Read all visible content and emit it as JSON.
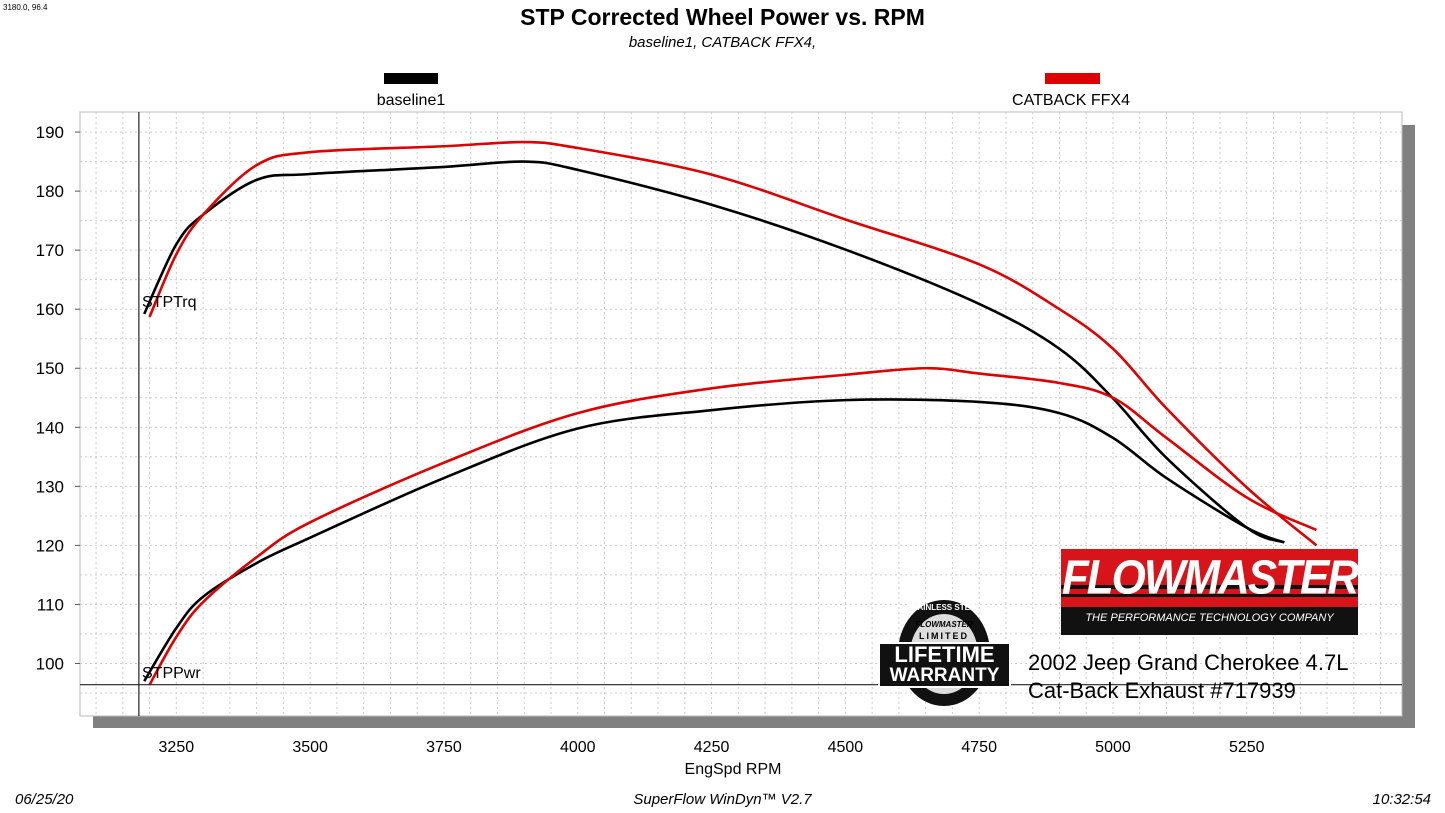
{
  "cursor_readout": "3180.0, 96.4",
  "footer": {
    "date": "06/25/20",
    "software": "SuperFlow WinDyn™ V2.7",
    "time": "10:32:54"
  },
  "annotation": {
    "line1": "2002 Jeep Grand Cherokee 4.7L",
    "line2": "Cat-Back Exhaust #717939"
  },
  "logos": {
    "flowmaster": {
      "name": "FLOWMASTER",
      "tagline": "THE PERFORMANCE TECHNOLOGY COMPANY",
      "mark": "INC."
    },
    "warranty": {
      "ring": "STAINLESS STEEL",
      "brand": "FLOWMASTER",
      "l1": "LIMITED",
      "l2": "LIFETIME",
      "l3": "WARRANTY"
    }
  },
  "colors": {
    "baseline1": "#000000",
    "catback": "#dd0000",
    "shadow": "#808080",
    "logo_red": "#d7141a"
  },
  "chart_data": {
    "type": "line",
    "title": "STP Corrected Wheel Power vs. RPM",
    "subtitle": "baseline1, CATBACK FFX4,",
    "xlabel": "EngSpd  RPM",
    "ylabel": "",
    "xlim": [
      3070,
      5540
    ],
    "ylim": [
      91.1,
      193.4
    ],
    "xticks": [
      3250,
      3500,
      3750,
      4000,
      4250,
      4500,
      4750,
      5000,
      5250
    ],
    "yticks": [
      100,
      110,
      120,
      130,
      140,
      150,
      160,
      170,
      180,
      190
    ],
    "grid": true,
    "legend_placement": "top",
    "cursor": {
      "x": 3180.0,
      "y": 96.4
    },
    "curve_labels": {
      "torque": "STPTrq",
      "power": "STPPwr"
    },
    "series": [
      {
        "name": "baseline1",
        "quantity": "STPTrq",
        "color": "#000000",
        "x": [
          3190,
          3250,
          3300,
          3400,
          3500,
          3750,
          3900,
          4000,
          4250,
          4500,
          4750,
          4900,
          5000,
          5100,
          5250,
          5320
        ],
        "y": [
          159.2,
          171,
          176,
          181.9,
          182.9,
          184.1,
          185,
          183.6,
          177.7,
          170.1,
          160.9,
          153.3,
          144.9,
          134.8,
          123,
          120.5
        ]
      },
      {
        "name": "CATBACK FFX4",
        "quantity": "STPTrq",
        "color": "#dd0000",
        "x": [
          3200,
          3250,
          3300,
          3400,
          3500,
          3750,
          3900,
          4000,
          4250,
          4500,
          4750,
          4900,
          5000,
          5100,
          5250,
          5380
        ],
        "y": [
          158.7,
          169.3,
          176,
          184.4,
          186.6,
          187.6,
          188.3,
          187.3,
          182.8,
          175.2,
          167.6,
          160,
          153.3,
          143.2,
          129.8,
          120
        ]
      },
      {
        "name": "baseline1",
        "quantity": "STPPwr",
        "color": "#000000",
        "x": [
          3190,
          3250,
          3300,
          3400,
          3500,
          3750,
          4000,
          4250,
          4500,
          4750,
          4900,
          5000,
          5100,
          5250,
          5320
        ],
        "y": [
          97,
          106,
          111.3,
          117,
          121.3,
          131.4,
          139.8,
          142.9,
          144.6,
          144.3,
          142.4,
          138.2,
          131.4,
          123,
          120.5
        ]
      },
      {
        "name": "CATBACK FFX4",
        "quantity": "STPPwr",
        "color": "#dd0000",
        "x": [
          3200,
          3250,
          3300,
          3400,
          3500,
          3750,
          4000,
          4250,
          4500,
          4650,
          4750,
          4900,
          5000,
          5100,
          5250,
          5380
        ],
        "y": [
          96.4,
          104.5,
          110.4,
          118,
          123.9,
          134,
          142.4,
          146.6,
          148.9,
          150,
          149.1,
          147.5,
          145,
          138.2,
          128.1,
          122.6
        ]
      }
    ]
  }
}
